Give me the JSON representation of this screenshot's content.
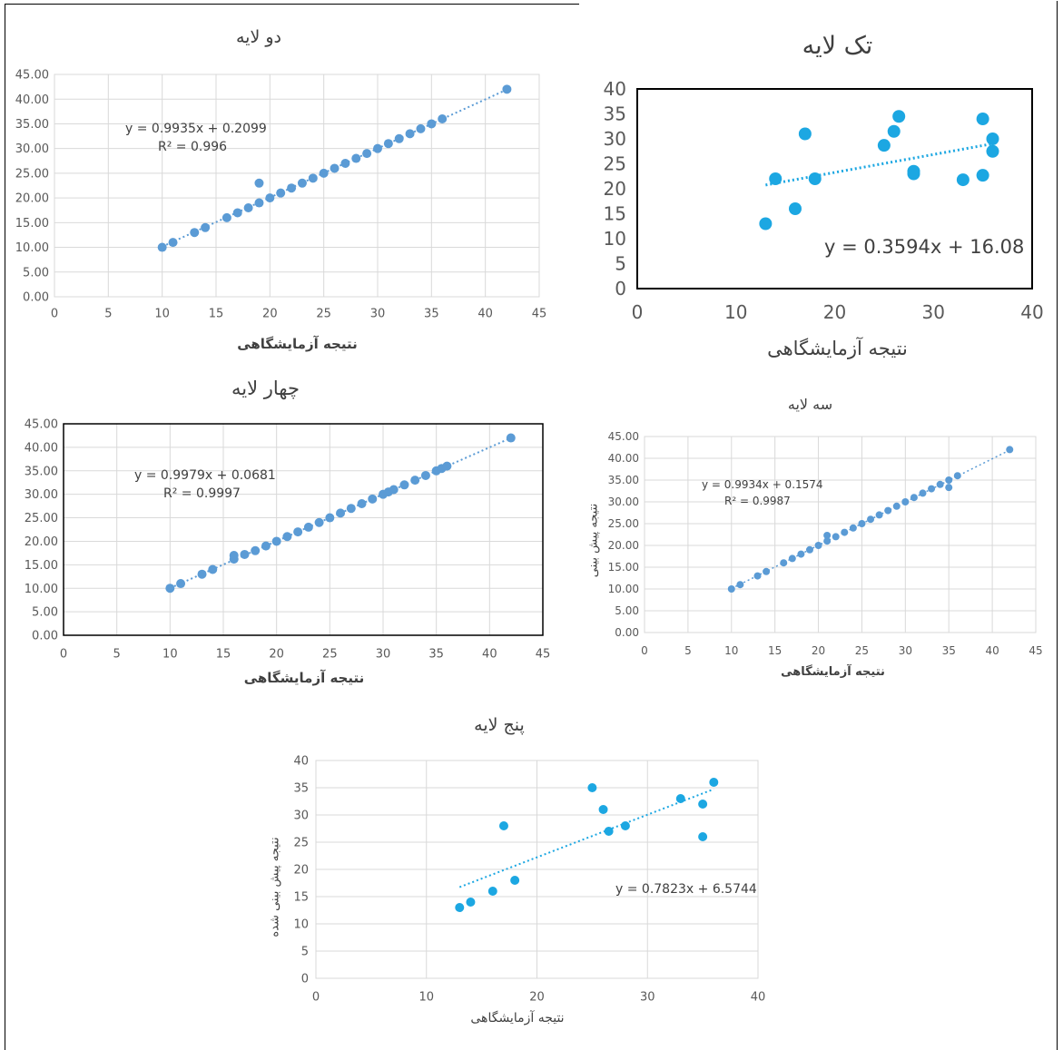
{
  "colors": {
    "series_blue": "#5b9bd5",
    "series_cyan": "#1ca7e2",
    "grid": "#d9d9d9",
    "text": "#404040"
  },
  "chart_data": [
    {
      "id": "two-layer",
      "type": "scatter",
      "title": "دو لایه",
      "xlabel": "نتیجه آزمایشگاهی",
      "ylabel": "",
      "xlim": [
        0,
        45
      ],
      "ylim": [
        0,
        45
      ],
      "xticks": [
        "0",
        "5",
        "10",
        "15",
        "20",
        "25",
        "30",
        "35",
        "40",
        "45"
      ],
      "yticks": [
        "0.00",
        "5.00",
        "10.00",
        "15.00",
        "20.00",
        "25.00",
        "30.00",
        "35.00",
        "40.00",
        "45.00"
      ],
      "trendline": {
        "equation": "y = 0.9935x + 0.2099",
        "r2": "R² = 0.996",
        "slope": 0.9935,
        "intercept": 0.2099
      },
      "series": [
        {
          "x": [
            10,
            11,
            13,
            14,
            16,
            17,
            18,
            19,
            19,
            20,
            21,
            22,
            23,
            24,
            25,
            26,
            27,
            28,
            29,
            30,
            31,
            32,
            33,
            34,
            35,
            36,
            42
          ],
          "y": [
            10,
            11,
            13,
            14,
            16,
            17,
            18,
            19,
            23,
            20,
            21,
            22,
            23,
            24,
            25,
            26,
            27,
            28,
            29,
            30,
            31,
            32,
            33,
            34,
            35,
            36,
            42
          ]
        }
      ]
    },
    {
      "id": "single-layer",
      "type": "scatter",
      "title": "تک لایه",
      "xlabel": "نتیجه آزمایشگاهی",
      "ylabel": "",
      "xlim": [
        0,
        40
      ],
      "ylim": [
        0,
        40
      ],
      "xticks": [
        "0",
        "10",
        "20",
        "30",
        "40"
      ],
      "yticks": [
        "0",
        "5",
        "10",
        "15",
        "20",
        "25",
        "30",
        "35",
        "40"
      ],
      "trendline": {
        "equation": "y = 0.3594x + 16.08",
        "r2": "",
        "slope": 0.3594,
        "intercept": 16.08
      },
      "series": [
        {
          "x": [
            13,
            14,
            16,
            17,
            18,
            25,
            26,
            26.5,
            28,
            28,
            33,
            35,
            35,
            36,
            36
          ],
          "y": [
            13,
            22,
            16,
            31,
            22,
            28.7,
            31.5,
            34.5,
            23,
            23.5,
            21.8,
            22.7,
            34,
            30,
            27.5
          ]
        }
      ]
    },
    {
      "id": "four-layer",
      "type": "scatter",
      "title": "چهار لایه",
      "xlabel": "نتیجه آزمایشگاهی",
      "ylabel": "",
      "xlim": [
        0,
        45
      ],
      "ylim": [
        0,
        45
      ],
      "xticks": [
        "0",
        "5",
        "10",
        "15",
        "20",
        "25",
        "30",
        "35",
        "40",
        "45"
      ],
      "yticks": [
        "0.00",
        "5.00",
        "10.00",
        "15.00",
        "20.00",
        "25.00",
        "30.00",
        "35.00",
        "40.00",
        "45.00"
      ],
      "trendline": {
        "equation": "y = 0.9979x + 0.0681",
        "r2": "R² = 0.9997",
        "slope": 0.9979,
        "intercept": 0.0681
      },
      "series": [
        {
          "x": [
            10,
            11,
            13,
            14,
            16,
            16,
            17,
            18,
            19,
            20,
            21,
            22,
            23,
            24,
            25,
            26,
            27,
            28,
            29,
            30,
            30.5,
            31,
            32,
            33,
            34,
            35,
            35.5,
            36,
            42
          ],
          "y": [
            10,
            11,
            13,
            14,
            16.2,
            17,
            17.2,
            18,
            19,
            20,
            21,
            22,
            23,
            24,
            25,
            26,
            27,
            28,
            29,
            30,
            30.5,
            31,
            32,
            33,
            34,
            35,
            35.5,
            36,
            42
          ]
        }
      ]
    },
    {
      "id": "three-layer",
      "type": "scatter",
      "title": "سه لایه",
      "xlabel": "نتیجه آزمایشگاهی",
      "ylabel": "نتیجه پیش بینی",
      "xlim": [
        0,
        45
      ],
      "ylim": [
        0,
        45
      ],
      "xticks": [
        "0",
        "5",
        "10",
        "15",
        "20",
        "25",
        "30",
        "35",
        "40",
        "45"
      ],
      "yticks": [
        "0.00",
        "5.00",
        "10.00",
        "15.00",
        "20.00",
        "25.00",
        "30.00",
        "35.00",
        "40.00",
        "45.00"
      ],
      "trendline": {
        "equation": "y = 0.9934x + 0.1574",
        "r2": "R² = 0.9987",
        "slope": 0.9934,
        "intercept": 0.1574
      },
      "series": [
        {
          "x": [
            10,
            11,
            13,
            14,
            16,
            17,
            18,
            19,
            20,
            21,
            21,
            22,
            23,
            24,
            25,
            26,
            27,
            28,
            29,
            30,
            31,
            32,
            33,
            34,
            35,
            35,
            36,
            42
          ],
          "y": [
            10,
            11,
            13,
            14,
            16,
            17,
            18,
            19,
            20,
            21,
            22.3,
            22,
            23,
            24,
            25,
            26,
            27,
            28,
            29,
            30,
            31,
            32,
            33,
            34,
            33.3,
            35,
            36,
            42
          ]
        }
      ]
    },
    {
      "id": "five-layer",
      "type": "scatter",
      "title": "پنج لایه",
      "xlabel": "نتیجه آزمایشگاهی",
      "ylabel": "نتیجه پیش بینی شده",
      "xlim": [
        0,
        40
      ],
      "ylim": [
        0,
        40
      ],
      "xticks": [
        "0",
        "10",
        "20",
        "30",
        "40"
      ],
      "yticks": [
        "0",
        "5",
        "10",
        "15",
        "20",
        "25",
        "30",
        "35",
        "40"
      ],
      "trendline": {
        "equation": "y = 0.7823x + 6.5744",
        "r2": "",
        "slope": 0.7823,
        "intercept": 6.5744
      },
      "series": [
        {
          "x": [
            13,
            14,
            16,
            17,
            18,
            25,
            26,
            26.5,
            28,
            33,
            35,
            35,
            36
          ],
          "y": [
            13,
            14,
            16,
            28,
            18,
            35,
            31,
            27,
            28,
            33,
            32,
            26,
            36
          ]
        }
      ]
    }
  ]
}
